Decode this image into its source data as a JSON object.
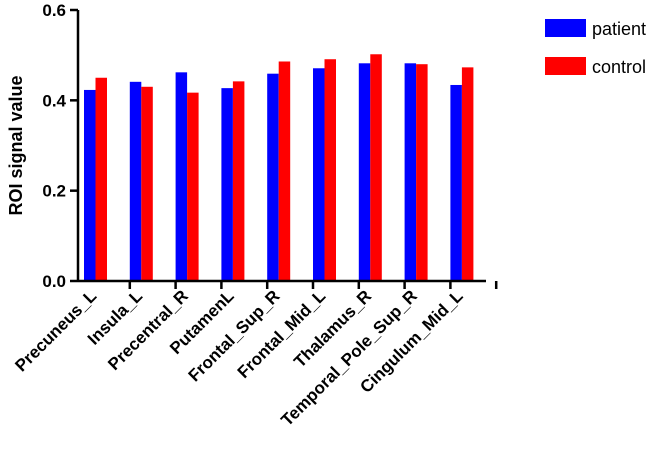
{
  "chart_data": {
    "type": "bar",
    "ylabel": "ROI signal value",
    "ylim": [
      0,
      0.6
    ],
    "yticks": [
      0.0,
      0.2,
      0.4,
      0.6
    ],
    "ytick_labels": [
      "0.0",
      "0.2",
      "0.4",
      "0.6"
    ],
    "categories": [
      "Precuneus_L",
      "Insula_L",
      "Precentral_R",
      "PutamenL",
      "Frontal_Sup_R",
      "Frontal_Mid_L",
      "Thalamus_R",
      "Temporal_Pole_Sup_R",
      "Cingulum_Mid_L"
    ],
    "series": [
      {
        "name": "patient",
        "color": "#0000FF",
        "values": [
          0.423,
          0.441,
          0.462,
          0.427,
          0.459,
          0.471,
          0.482,
          0.482,
          0.434
        ]
      },
      {
        "name": "control",
        "color": "#FF0000",
        "values": [
          0.45,
          0.43,
          0.417,
          0.442,
          0.486,
          0.491,
          0.502,
          0.48,
          0.473
        ]
      }
    ],
    "legend_position": "top-right",
    "grid": false
  }
}
